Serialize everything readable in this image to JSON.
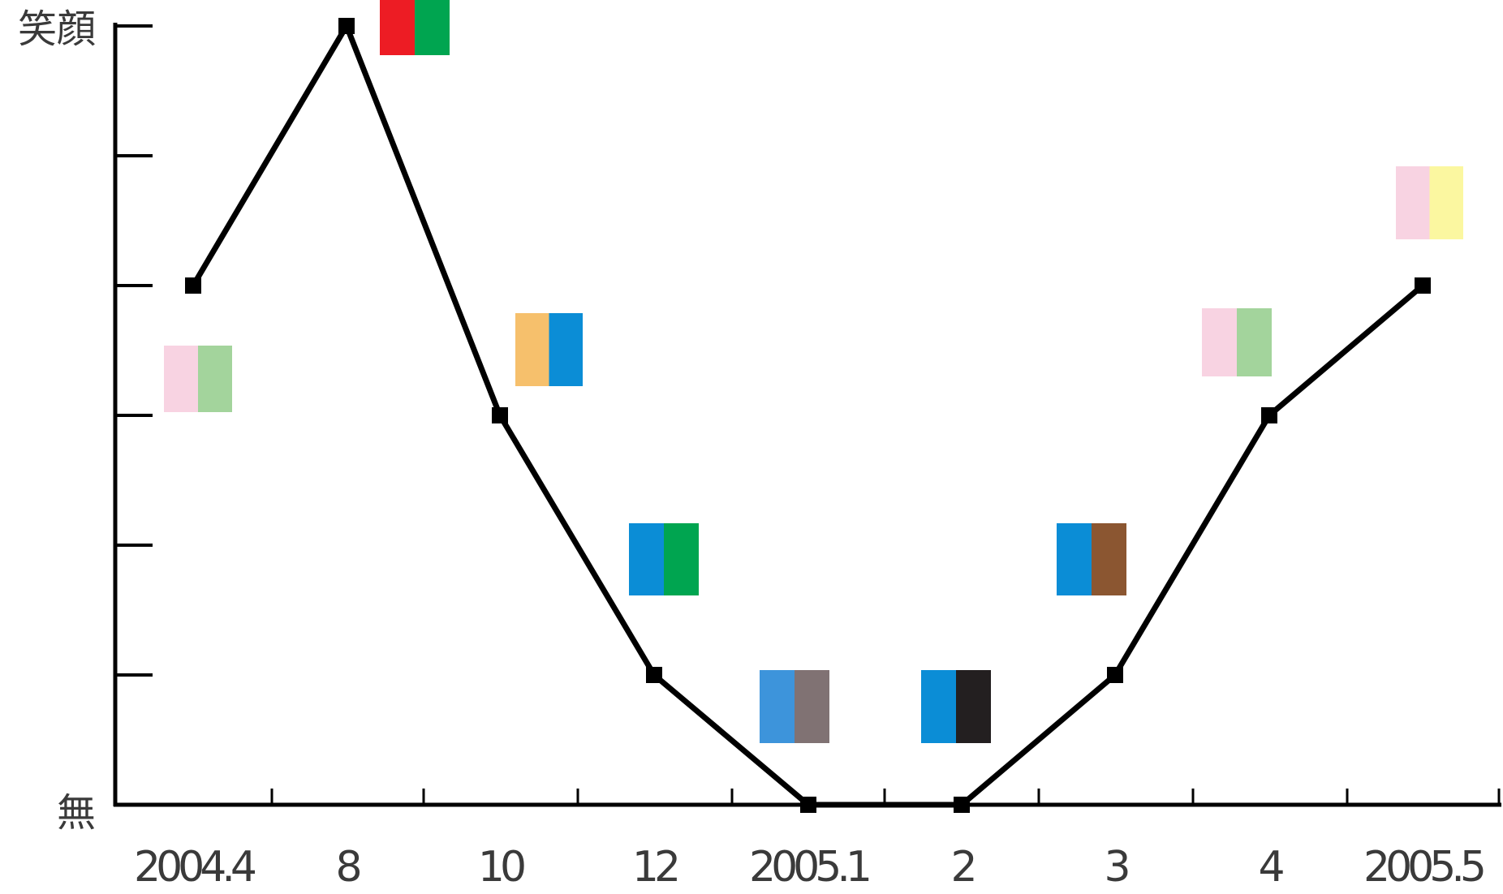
{
  "chart_data": {
    "type": "line",
    "title": "",
    "xlabel": "",
    "ylabel": "",
    "categories": [
      "2004.4",
      "8",
      "10",
      "12",
      "2005.1",
      "2",
      "3",
      "4",
      "2005.5"
    ],
    "series": [
      {
        "values": [
          4,
          6,
          3,
          1,
          0,
          0,
          1,
          3,
          4
        ]
      }
    ],
    "ylim": [
      0,
      6
    ],
    "y_tick_labels": {
      "top": "笑顔",
      "bottom": "無"
    },
    "grid": false,
    "legend": "none",
    "line_color": "#000000",
    "color_swatches": [
      {
        "category": "2004.4",
        "colors": [
          "#f8d3e2",
          "#a3d49c"
        ]
      },
      {
        "category": "8",
        "colors": [
          "#ed1c24",
          "#00a550"
        ]
      },
      {
        "category": "10",
        "colors": [
          "#f6c06c",
          "#0b8dd6"
        ]
      },
      {
        "category": "12",
        "colors": [
          "#0b8dd6",
          "#00a550"
        ]
      },
      {
        "category": "2005.1",
        "colors": [
          "#3d94db",
          "#807273"
        ]
      },
      {
        "category": "2",
        "colors": [
          "#0b8dd6",
          "#231f20"
        ]
      },
      {
        "category": "3",
        "colors": [
          "#0b8dd6",
          "#8b5631"
        ]
      },
      {
        "category": "4",
        "colors": [
          "#f8d3e2",
          "#a3d49c"
        ]
      },
      {
        "category": "2005.5",
        "colors": [
          "#f8d3e2",
          "#fbf7a0"
        ]
      }
    ]
  }
}
